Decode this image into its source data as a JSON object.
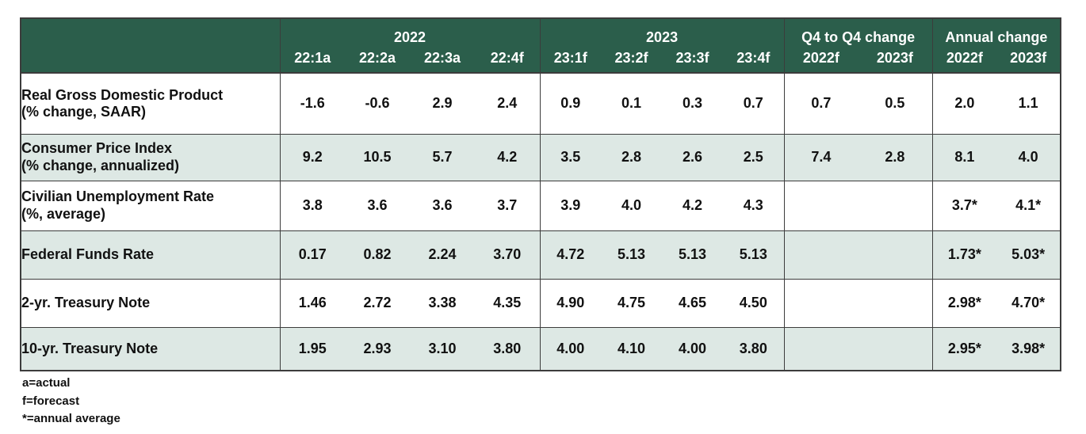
{
  "colors": {
    "header_bg": "#2b5e4b",
    "header_text": "#ffffff",
    "row_alt_bg": "#dde8e4",
    "row_bg": "#ffffff",
    "border": "#3c3c3c",
    "body_text": "#111111"
  },
  "chart_data": {
    "type": "table",
    "title": "",
    "col_groups": [
      {
        "label": "",
        "span": 1
      },
      {
        "label": "2022",
        "span": 4
      },
      {
        "label": "2023",
        "span": 4
      },
      {
        "label": "Q4 to Q4 change",
        "span": 2
      },
      {
        "label": "Annual change",
        "span": 2
      }
    ],
    "sub_headers": [
      "22:1a",
      "22:2a",
      "22:3a",
      "22:4f",
      "23:1f",
      "23:2f",
      "23:3f",
      "23:4f",
      "2022f",
      "2023f",
      "2022f",
      "2023f"
    ],
    "rows": [
      {
        "label": "Real Gross Domestic Product",
        "sublabel": "(% change, SAAR)",
        "values": [
          "-1.6",
          "-0.6",
          "2.9",
          "2.4",
          "0.9",
          "0.1",
          "0.3",
          "0.7",
          "0.7",
          "0.5",
          "2.0",
          "1.1"
        ]
      },
      {
        "label": "Consumer Price Index",
        "sublabel": "(% change, annualized)",
        "values": [
          "9.2",
          "10.5",
          "5.7",
          "4.2",
          "3.5",
          "2.8",
          "2.6",
          "2.5",
          "7.4",
          "2.8",
          "8.1",
          "4.0"
        ]
      },
      {
        "label": "Civilian Unemployment Rate",
        "sublabel": "(%, average)",
        "values": [
          "3.8",
          "3.6",
          "3.6",
          "3.7",
          "3.9",
          "4.0",
          "4.2",
          "4.3",
          "",
          "",
          "3.7*",
          "4.1*"
        ]
      },
      {
        "label": "Federal Funds Rate",
        "sublabel": "",
        "values": [
          "0.17",
          "0.82",
          "2.24",
          "3.70",
          "4.72",
          "5.13",
          "5.13",
          "5.13",
          "",
          "",
          "1.73*",
          "5.03*"
        ]
      },
      {
        "label": "2-yr. Treasury Note",
        "sublabel": "",
        "values": [
          "1.46",
          "2.72",
          "3.38",
          "4.35",
          "4.90",
          "4.75",
          "4.65",
          "4.50",
          "",
          "",
          "2.98*",
          "4.70*"
        ]
      },
      {
        "label": "10-yr. Treasury Note",
        "sublabel": "",
        "values": [
          "1.95",
          "2.93",
          "3.10",
          "3.80",
          "4.00",
          "4.10",
          "4.00",
          "3.80",
          "",
          "",
          "2.95*",
          "3.98*"
        ]
      }
    ],
    "footnotes": [
      "a=actual",
      "f=forecast",
      "*=annual average"
    ]
  }
}
